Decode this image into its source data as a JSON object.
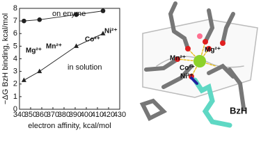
{
  "chart_data": {
    "type": "line",
    "y_label": "−ΔG BzH binding, kcal/mol",
    "x_label": "electron affinity, kcal/mol",
    "x": [
      344,
      358,
      391,
      415
    ],
    "series": [
      {
        "name": "on enyme",
        "color": "#222222",
        "marker": "circle",
        "values": [
          7.0,
          7.1,
          7.5,
          7.8
        ]
      },
      {
        "name": "in solution",
        "color": "#222222",
        "marker": "triangle",
        "values": [
          2.3,
          3.0,
          5.0,
          6.0
        ]
      }
    ],
    "annotations": [
      {
        "text": "Mg²⁺",
        "color": "#6cc21a"
      },
      {
        "text": "Mn²⁺",
        "color": "#c21fc2"
      },
      {
        "text": "Co²⁺",
        "color": "#e0206a"
      },
      {
        "text": "Ni²⁺",
        "color": "#1c1ca0"
      }
    ],
    "xlim": [
      340,
      430
    ],
    "xticks": [
      340,
      350,
      360,
      370,
      380,
      390,
      400,
      410,
      420,
      430
    ],
    "ylim": [
      0,
      8
    ],
    "yticks": [
      0,
      1,
      2,
      3,
      4,
      5,
      6,
      7,
      8
    ]
  },
  "figure_labels": [
    {
      "text": "Mg²⁺",
      "color": "#6cc21a"
    },
    {
      "text": "Mn²⁺",
      "color": "#c21fc2"
    },
    {
      "text": "Co²⁺",
      "color": "#e0206a"
    },
    {
      "text": "Ni²⁺",
      "color": "#1c1ca0"
    },
    {
      "text": "BzH",
      "color": "#5fd8c4"
    }
  ]
}
